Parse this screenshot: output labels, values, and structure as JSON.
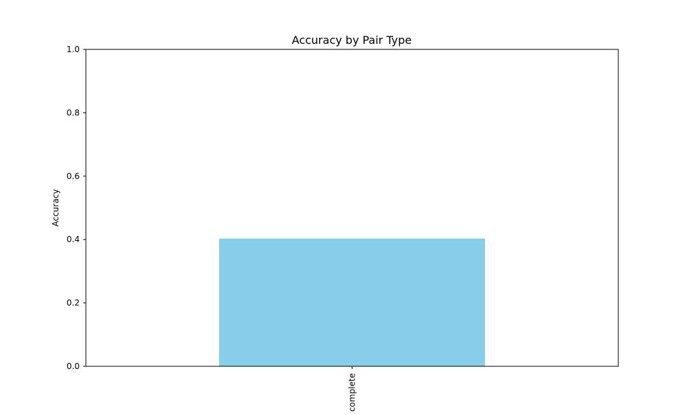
{
  "chart_data": {
    "type": "bar",
    "title": "Accuracy by Pair Type",
    "xlabel": "",
    "ylabel": "Accuracy",
    "categories": [
      "complete"
    ],
    "values": [
      0.403
    ],
    "ylim": [
      0,
      1
    ],
    "yticks": [
      "0.0",
      "0.2",
      "0.4",
      "0.6",
      "0.8",
      "1.0"
    ],
    "bar_color": "#87CEEB",
    "grid": false,
    "legend": "none"
  }
}
